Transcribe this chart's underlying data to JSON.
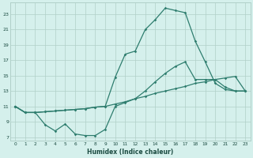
{
  "title": "",
  "xlabel": "Humidex (Indice chaleur)",
  "bg_color": "#d5f0ec",
  "line_color": "#2e7d6e",
  "grid_color": "#b0cfc8",
  "xlim": [
    -0.5,
    23.5
  ],
  "ylim": [
    6.5,
    24.5
  ],
  "xticks": [
    0,
    1,
    2,
    3,
    4,
    5,
    6,
    7,
    8,
    9,
    10,
    11,
    12,
    13,
    14,
    15,
    16,
    17,
    18,
    19,
    20,
    21,
    22,
    23
  ],
  "yticks": [
    7,
    9,
    11,
    13,
    15,
    17,
    19,
    21,
    23
  ],
  "line1_x": [
    0,
    1,
    2,
    3,
    4,
    5,
    6,
    7,
    8,
    9,
    10,
    11,
    12,
    13,
    14,
    15,
    16,
    17,
    18,
    19,
    20,
    21,
    22,
    23
  ],
  "line1_y": [
    11.0,
    10.2,
    10.2,
    10.3,
    10.4,
    10.5,
    10.6,
    10.7,
    10.9,
    11.0,
    11.3,
    11.6,
    12.0,
    12.3,
    12.7,
    13.0,
    13.3,
    13.6,
    14.0,
    14.2,
    14.5,
    14.7,
    14.9,
    13.0
  ],
  "line2_x": [
    0,
    1,
    2,
    3,
    4,
    5,
    6,
    7,
    8,
    9,
    10,
    11,
    12,
    13,
    14,
    15,
    16,
    17,
    18,
    19,
    20,
    21,
    22,
    23
  ],
  "line2_y": [
    11.0,
    10.2,
    10.2,
    10.3,
    10.4,
    10.5,
    10.6,
    10.7,
    10.9,
    11.0,
    14.8,
    17.8,
    18.2,
    21.0,
    22.3,
    23.8,
    23.5,
    23.2,
    19.5,
    16.8,
    14.0,
    13.2,
    13.0,
    13.0
  ],
  "line3_x": [
    0,
    1,
    2,
    3,
    4,
    5,
    6,
    7,
    8,
    9,
    10,
    11,
    12,
    13,
    14,
    15,
    16,
    17,
    18,
    19,
    20,
    21,
    22,
    23
  ],
  "line3_y": [
    11.0,
    10.2,
    10.2,
    8.6,
    7.8,
    8.7,
    7.4,
    7.2,
    7.2,
    8.0,
    11.0,
    11.5,
    12.0,
    13.0,
    14.2,
    15.3,
    16.2,
    16.8,
    14.5,
    14.5,
    14.5,
    13.5,
    13.0,
    13.0
  ],
  "marker": "D",
  "markersize": 1.8,
  "linewidth": 0.9
}
